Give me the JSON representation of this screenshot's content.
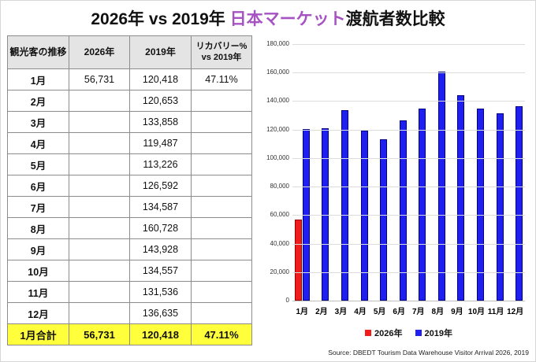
{
  "title": {
    "prefix": "2026年 vs 2019年 ",
    "highlight": "日本マーケット",
    "suffix": "渡航者数比較"
  },
  "colors": {
    "title_highlight": "#a652c3",
    "bar_2026_fill": "#f01c1c",
    "bar_2026_border": "#990000",
    "bar_2019_fill": "#1f1ff0",
    "bar_2019_border": "#000080",
    "total_row_bg": "#ffff3b",
    "header_row_bg": "#e4e4e4"
  },
  "table": {
    "headers": [
      "観光客の推移",
      "2026年",
      "2019年",
      "リカバリー% vs 2019年"
    ],
    "rows": [
      {
        "month": "1月",
        "v2026": "56,731",
        "v2019": "120,418",
        "recovery": "47.11%"
      },
      {
        "month": "2月",
        "v2026": "",
        "v2019": "120,653",
        "recovery": ""
      },
      {
        "month": "3月",
        "v2026": "",
        "v2019": "133,858",
        "recovery": ""
      },
      {
        "month": "4月",
        "v2026": "",
        "v2019": "119,487",
        "recovery": ""
      },
      {
        "month": "5月",
        "v2026": "",
        "v2019": "113,226",
        "recovery": ""
      },
      {
        "month": "6月",
        "v2026": "",
        "v2019": "126,592",
        "recovery": ""
      },
      {
        "month": "7月",
        "v2026": "",
        "v2019": "134,587",
        "recovery": ""
      },
      {
        "month": "8月",
        "v2026": "",
        "v2019": "160,728",
        "recovery": ""
      },
      {
        "month": "9月",
        "v2026": "",
        "v2019": "143,928",
        "recovery": ""
      },
      {
        "month": "10月",
        "v2026": "",
        "v2019": "134,557",
        "recovery": ""
      },
      {
        "month": "11月",
        "v2026": "",
        "v2019": "131,536",
        "recovery": ""
      },
      {
        "month": "12月",
        "v2026": "",
        "v2019": "136,635",
        "recovery": ""
      }
    ],
    "total": {
      "month": "1月合計",
      "v2026": "56,731",
      "v2019": "120,418",
      "recovery": "47.11%"
    }
  },
  "chart_data": {
    "type": "bar",
    "categories": [
      "1月",
      "2月",
      "3月",
      "4月",
      "5月",
      "6月",
      "7月",
      "8月",
      "9月",
      "10月",
      "11月",
      "12月"
    ],
    "series": [
      {
        "name": "2026年",
        "color": "#f01c1c",
        "border": "#990000",
        "values": [
          56731,
          null,
          null,
          null,
          null,
          null,
          null,
          null,
          null,
          null,
          null,
          null
        ]
      },
      {
        "name": "2019年",
        "color": "#1f1ff0",
        "border": "#000080",
        "values": [
          120418,
          120653,
          133858,
          119487,
          113226,
          126592,
          134587,
          160728,
          143928,
          134557,
          131536,
          136635
        ]
      }
    ],
    "title": "",
    "xlabel": "",
    "ylabel": "",
    "ylim": [
      0,
      180000
    ],
    "ytick_step": 20000,
    "grid": true,
    "legend_position": "bottom",
    "source": "Source: DBEDT Tourism Data Warehouse Visitor Arrival 2026, 2019"
  }
}
